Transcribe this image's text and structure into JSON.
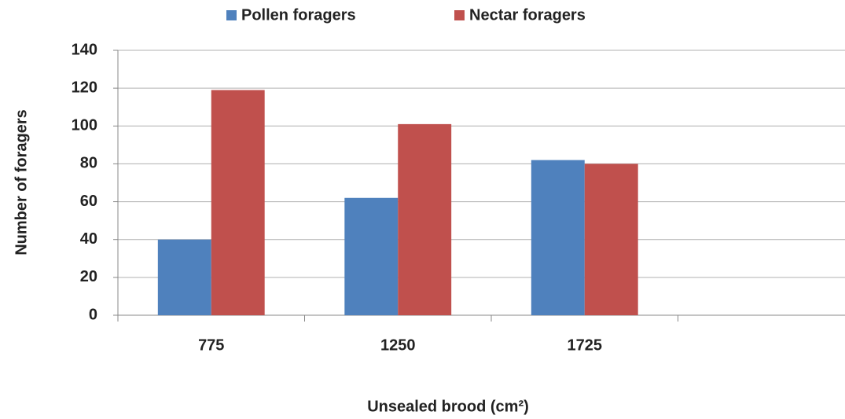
{
  "chart_data": {
    "type": "bar",
    "categories": [
      "775",
      "1250",
      "1725",
      null
    ],
    "series": [
      {
        "name": "Pollen foragers",
        "color": "#4f81bd",
        "values": [
          40,
          62,
          82,
          null
        ]
      },
      {
        "name": "Nectar foragers",
        "color": "#c0504d",
        "values": [
          119,
          101,
          80,
          null
        ]
      }
    ],
    "xlabel": "Unsealed brood (cm²)",
    "ylabel": "Number of foragers",
    "ylim": [
      0,
      140
    ],
    "yticks": [
      0,
      20,
      40,
      60,
      80,
      100,
      120,
      140
    ],
    "grid": true,
    "legend": "top"
  }
}
